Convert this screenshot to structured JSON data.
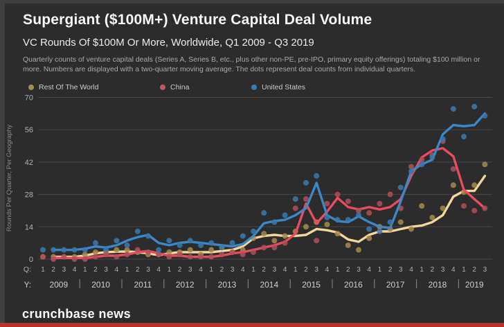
{
  "header": {
    "title": "Supergiant ($100M+) Venture Capital Deal Volume",
    "subtitle": "VC Rounds Of $100M Or More, Worldwide, Q1 2009 - Q3 2019",
    "description": "Quarterly counts of venture capital deals (Series A, Series B, etc., plus other non-PE, pre-IPO, primary equity offerings) totaling $100 million or more. Numbers are displayed with a two-quarter moving average. The dots represent deal counts from individual quarters."
  },
  "legend": {
    "row_label": "Rest Of The World",
    "china_label": "China",
    "us_label": "United States",
    "row_color": "#a8894e",
    "china_color": "#c25562",
    "us_color": "#3a7ab3"
  },
  "footer": {
    "brand": "crunchbase news",
    "bar_color": "#b5322d"
  },
  "chart_data": {
    "type": "line",
    "title": "Supergiant ($100M+) Venture Capital Deal Volume",
    "ylabel": "Rounds Per Quarter, Per Geography",
    "quarter_axis_prefix": "Q:",
    "year_axis_prefix": "Y:",
    "ylim": [
      0,
      70
    ],
    "yticks": [
      0,
      14,
      28,
      42,
      56,
      70
    ],
    "grid": "horizontal-only",
    "legend_position": "top",
    "years": [
      "2009",
      "2010",
      "2011",
      "2012",
      "2013",
      "2014",
      "2015",
      "2016",
      "2017",
      "2018",
      "2019"
    ],
    "quarter_labels": [
      "1",
      "2",
      "3",
      "4",
      "1",
      "2",
      "3",
      "4",
      "1",
      "2",
      "3",
      "4",
      "1",
      "2",
      "3",
      "4",
      "1",
      "2",
      "3",
      "4",
      "1",
      "2",
      "3",
      "4",
      "1",
      "2",
      "3",
      "4",
      "1",
      "2",
      "3",
      "4",
      "1",
      "2",
      "3",
      "4",
      "1",
      "2",
      "3",
      "4",
      "1",
      "2",
      "3"
    ],
    "ma_start_index": 1,
    "series": [
      {
        "name": "Rest Of The World",
        "line_color": "#f4d79e",
        "dot_color": "#a8894e",
        "dots": [
          1,
          1,
          1,
          1,
          2,
          3,
          3,
          4,
          4,
          3,
          2,
          2,
          3,
          3,
          4,
          2,
          4,
          5,
          3,
          4,
          9,
          11,
          8,
          10,
          12,
          14,
          16,
          15,
          11,
          6,
          4,
          9,
          14,
          13,
          16,
          13,
          23,
          18,
          22,
          32,
          29,
          32,
          41
        ],
        "ma_line": [
          1,
          1,
          1,
          1.5,
          2.5,
          3,
          3.2,
          3.3,
          3,
          2.5,
          1.7,
          2.5,
          3,
          3,
          3,
          3,
          3.5,
          4,
          5.5,
          9,
          10,
          10.5,
          10,
          10,
          10.5,
          13,
          12.5,
          11.5,
          8.5,
          7.5,
          10.5,
          12,
          12,
          13,
          14,
          14.5,
          16,
          19,
          27,
          29.5,
          29.5,
          36
        ]
      },
      {
        "name": "China",
        "line_color": "#e84c5d",
        "dot_color": "#b04f5c",
        "dots": [
          1,
          0,
          1,
          0,
          0,
          1,
          2,
          1,
          2,
          4,
          3,
          2,
          1,
          2,
          1,
          1,
          1,
          2,
          3,
          2,
          3,
          5,
          5,
          7,
          22,
          26,
          8,
          24,
          28,
          25,
          21,
          20,
          24,
          28,
          22,
          40,
          43,
          45,
          51,
          39,
          23,
          21,
          22
        ],
        "ma_line": [
          0.5,
          0.5,
          0.5,
          0.5,
          1,
          1.5,
          1.5,
          2,
          3,
          3.5,
          2.5,
          1.5,
          1.5,
          1,
          1,
          1,
          1.5,
          2.5,
          3,
          4,
          5,
          6,
          7.5,
          11,
          24,
          15.5,
          20.5,
          26.5,
          22.5,
          21.5,
          22.5,
          21.5,
          22.5,
          26,
          36,
          44,
          47,
          48,
          44.5,
          30,
          26,
          22
        ]
      },
      {
        "name": "United States",
        "line_color": "#3c87c6",
        "dot_color": "#387ab0",
        "dots": [
          4,
          4,
          4,
          4,
          4,
          7,
          4,
          8,
          6,
          12,
          10,
          4,
          8,
          6,
          8,
          6,
          7,
          5,
          7,
          10,
          12,
          20,
          16,
          19,
          26,
          33,
          36,
          18,
          17,
          17,
          19,
          13,
          12,
          16,
          31,
          38,
          41,
          44,
          52,
          65,
          53,
          66,
          62
        ],
        "ma_line": [
          4,
          4,
          4,
          4.5,
          5.5,
          5,
          6,
          8,
          9.5,
          10.5,
          7,
          6,
          7,
          7.5,
          7,
          6.5,
          6,
          5.5,
          6.5,
          10,
          15.5,
          16.5,
          17,
          19,
          22,
          33,
          19,
          16.5,
          16,
          18.5,
          16,
          14,
          13.5,
          25,
          38,
          41,
          43,
          54,
          58,
          57.5,
          58,
          63
        ]
      }
    ]
  },
  "axis_colors": {
    "grid": "#474747",
    "tick_text": "#b0b0b0",
    "year_text": "#cfcfcf",
    "ylabel_text": "#8d8d8d",
    "separator": "#8a8a8a"
  }
}
